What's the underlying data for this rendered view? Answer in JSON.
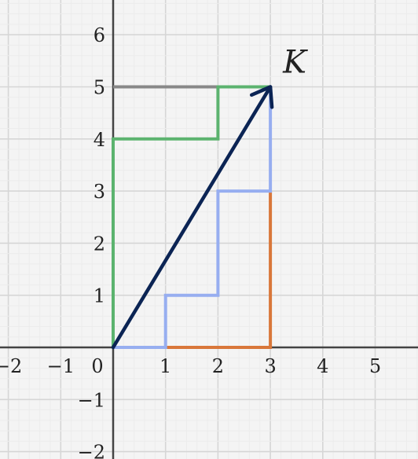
{
  "chart_data": {
    "type": "line",
    "xlim": [
      -2.2,
      5.85
    ],
    "ylim": [
      -2.1,
      6.6
    ],
    "grid": true,
    "x_ticks": [
      {
        "v": -2,
        "t": "−2"
      },
      {
        "v": -1,
        "t": "−1"
      },
      {
        "v": 0,
        "t": "0"
      },
      {
        "v": 1,
        "t": "1"
      },
      {
        "v": 2,
        "t": "2"
      },
      {
        "v": 3,
        "t": "3"
      },
      {
        "v": 4,
        "t": "4"
      },
      {
        "v": 5,
        "t": "5"
      }
    ],
    "y_ticks": [
      {
        "v": -2,
        "t": "−2"
      },
      {
        "v": -1,
        "t": "−1"
      },
      {
        "v": 1,
        "t": "1"
      },
      {
        "v": 2,
        "t": "2"
      },
      {
        "v": 3,
        "t": "3"
      },
      {
        "v": 4,
        "t": "4"
      },
      {
        "v": 5,
        "t": "5"
      },
      {
        "v": 6,
        "t": "6"
      }
    ],
    "paths": [
      {
        "id": "gray-path",
        "color": "#888888",
        "points": [
          [
            0,
            5
          ],
          [
            2,
            5
          ]
        ]
      },
      {
        "id": "green-path",
        "color": "#5cb36f",
        "points": [
          [
            0,
            0
          ],
          [
            0,
            4
          ],
          [
            2,
            4
          ],
          [
            2,
            5
          ],
          [
            3,
            5
          ]
        ]
      },
      {
        "id": "orange-path",
        "color": "#d9773a",
        "points": [
          [
            1,
            0
          ],
          [
            3,
            0
          ],
          [
            3,
            3
          ]
        ]
      },
      {
        "id": "blue-path",
        "color": "#97aef0",
        "points": [
          [
            0,
            0
          ],
          [
            1,
            0
          ],
          [
            1,
            1
          ],
          [
            2,
            1
          ],
          [
            2,
            3
          ],
          [
            3,
            3
          ],
          [
            3,
            5
          ]
        ]
      }
    ],
    "vector": {
      "name": "K",
      "color": "#0b2454",
      "from": [
        0,
        0
      ],
      "to": [
        3,
        5
      ]
    }
  }
}
